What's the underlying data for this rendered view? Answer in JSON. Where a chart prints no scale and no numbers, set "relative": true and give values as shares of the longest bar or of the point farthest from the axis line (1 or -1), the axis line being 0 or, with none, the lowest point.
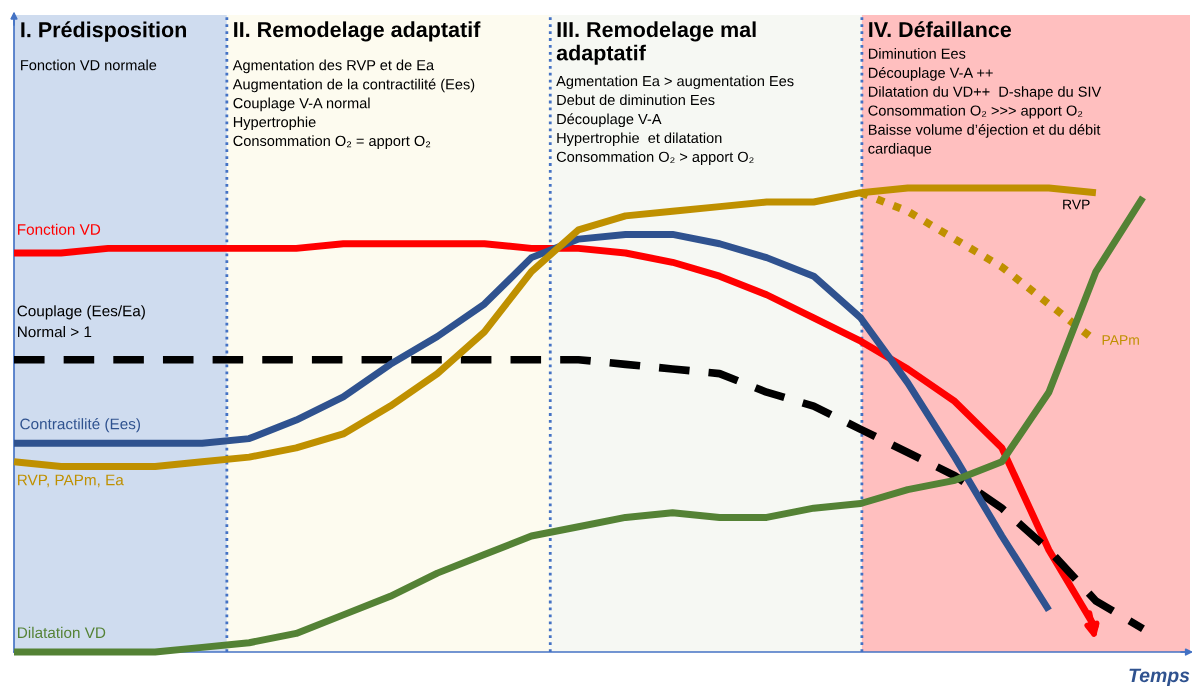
{
  "chart_data": {
    "type": "line",
    "relative": true,
    "xlabel": "Temps",
    "categories": [
      null,
      null,
      null,
      null,
      null,
      null,
      null,
      null,
      null,
      null,
      null,
      null,
      null,
      null,
      null,
      null,
      null,
      null,
      null,
      null,
      null,
      null,
      null,
      null,
      null
    ],
    "series": [
      {
        "name": "Fonction VD",
        "color": "#ff0000",
        "line_style": "solid",
        "values": [
          0.86,
          0.86,
          0.87,
          0.87,
          0.87,
          0.87,
          0.87,
          0.88,
          0.88,
          0.88,
          0.88,
          0.87,
          0.87,
          0.86,
          0.84,
          0.81,
          0.77,
          0.72,
          0.67,
          0.61,
          0.54,
          0.44,
          0.22,
          0.05,
          null
        ]
      },
      {
        "name": "Couplage (Ees/Ea)\nNormal > 1",
        "color": "#000000",
        "line_style": "dashed",
        "values": [
          0.63,
          0.63,
          0.63,
          0.63,
          0.63,
          0.63,
          0.63,
          0.63,
          0.63,
          0.63,
          0.63,
          0.63,
          0.63,
          0.62,
          0.61,
          0.6,
          0.56,
          0.53,
          0.48,
          0.43,
          0.38,
          0.31,
          0.22,
          0.11,
          0.05
        ]
      },
      {
        "name": "Contractilité (Ees)",
        "color": "#2f528f",
        "line_style": "solid",
        "values": [
          0.45,
          0.45,
          0.45,
          0.45,
          0.45,
          0.46,
          0.5,
          0.55,
          0.62,
          0.68,
          0.75,
          0.85,
          0.89,
          0.9,
          0.9,
          0.88,
          0.85,
          0.81,
          0.72,
          0.58,
          0.42,
          0.25,
          0.09,
          null,
          null
        ]
      },
      {
        "name": "RVP, PAPm, Ea",
        "color": "#bf9000",
        "line_style": "solid",
        "values": [
          0.41,
          0.4,
          0.4,
          0.4,
          0.41,
          0.42,
          0.44,
          0.47,
          0.53,
          0.6,
          0.69,
          0.82,
          0.91,
          0.94,
          0.95,
          0.96,
          0.97,
          0.97,
          0.99,
          1.0,
          1.0,
          1.0,
          1.0,
          0.99,
          null
        ]
      },
      {
        "name": "PAPm",
        "color": "#bf9000",
        "line_style": "dotted",
        "values": [
          null,
          null,
          null,
          null,
          null,
          null,
          null,
          null,
          null,
          null,
          null,
          null,
          null,
          null,
          null,
          null,
          null,
          null,
          0.99,
          0.95,
          0.89,
          0.83,
          0.75,
          0.67,
          null
        ]
      },
      {
        "name": "Dilatation VD",
        "color": "#548235",
        "line_style": "solid",
        "values": [
          0,
          0,
          0,
          0,
          0.01,
          0.02,
          0.04,
          0.08,
          0.12,
          0.17,
          0.21,
          0.25,
          0.27,
          0.29,
          0.3,
          0.29,
          0.29,
          0.31,
          0.32,
          0.35,
          0.37,
          0.41,
          0.56,
          0.82,
          0.98
        ]
      }
    ],
    "annotations": [
      "I. Prédisposition",
      "Fonction VD normale",
      "II. Remodelage adaptatif",
      "Agmentation des RVP et de Ea\nAugmentation de la contractilité (Ees)\nCouplage V-A normal\nHypertrophie\nConsommation O₂ = apport O₂",
      "III. Remodelage mal\nadaptatif",
      "Agmentation Ea > augmentation Ees\nDebut de diminution Ees\nDécouplage V-A\nHypertrophie  et dilatation\nConsommation O₂ > apport O₂",
      "IV. Défaillance",
      "Diminution Ees\nDécouplage V-A ++\nDilatation du VD++  D-shape du SIV\nConsommation O₂ >>> apport O₂\nBaisse volume d’éjection et du débit\ncardiaque",
      {
        "text": "RVP",
        "y": 1.0
      }
    ]
  }
}
